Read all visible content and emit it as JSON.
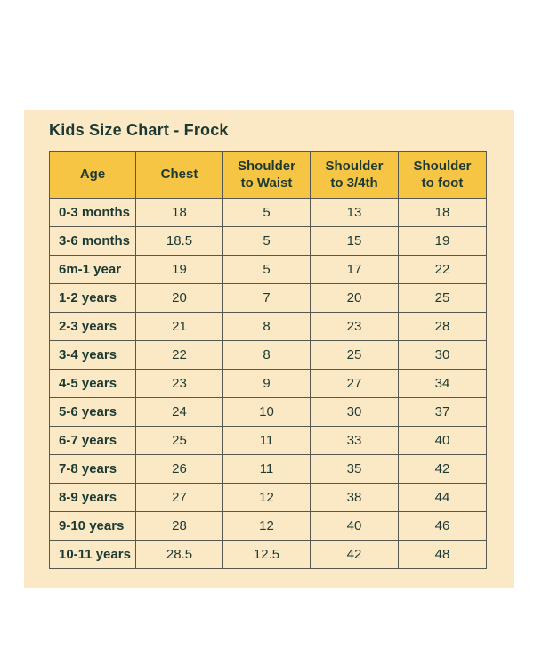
{
  "colors": {
    "page_bg": "#ffffff",
    "card_bg": "#fbe9c5",
    "header_bg": "#f6c544",
    "text": "#1c3a33",
    "border": "#55584e"
  },
  "chart_data": {
    "type": "table",
    "title": "Kids Size Chart - Frock",
    "columns": [
      "Age",
      "Chest",
      "Shoulder to Waist",
      "Shoulder to 3/4th",
      "Shoulder to foot"
    ],
    "rows": [
      [
        "0-3 months",
        "18",
        "5",
        "13",
        "18"
      ],
      [
        "3-6 months",
        "18.5",
        "5",
        "15",
        "19"
      ],
      [
        "6m-1 year",
        "19",
        "5",
        "17",
        "22"
      ],
      [
        "1-2 years",
        "20",
        "7",
        "20",
        "25"
      ],
      [
        "2-3 years",
        "21",
        "8",
        "23",
        "28"
      ],
      [
        "3-4 years",
        "22",
        "8",
        "25",
        "30"
      ],
      [
        "4-5 years",
        "23",
        "9",
        "27",
        "34"
      ],
      [
        "5-6 years",
        "24",
        "10",
        "30",
        "37"
      ],
      [
        "6-7 years",
        "25",
        "11",
        "33",
        "40"
      ],
      [
        "7-8 years",
        "26",
        "11",
        "35",
        "42"
      ],
      [
        "8-9 years",
        "27",
        "12",
        "38",
        "44"
      ],
      [
        "9-10 years",
        "28",
        "12",
        "40",
        "46"
      ],
      [
        "10-11 years",
        "28.5",
        "12.5",
        "42",
        "48"
      ]
    ]
  }
}
